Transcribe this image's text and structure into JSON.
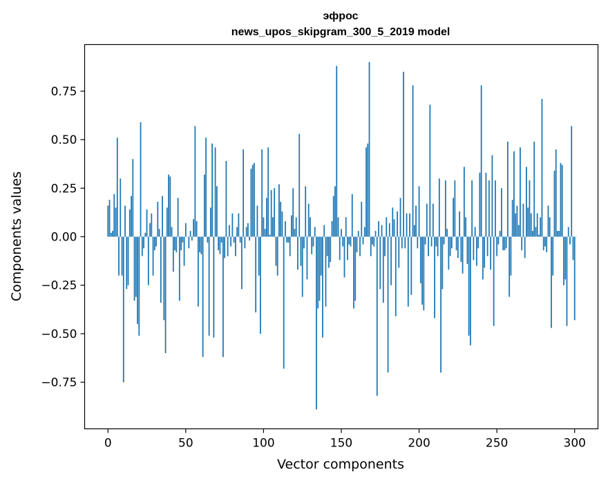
{
  "chart_data": {
    "type": "bar",
    "title": "эфрос",
    "subtitle": "news_upos_skipgram_300_5_2019 model",
    "xlabel": "Vector components",
    "ylabel": "Components values",
    "xlim": [
      -15,
      315
    ],
    "ylim": [
      -0.99,
      0.99
    ],
    "xticks": [
      0,
      50,
      100,
      150,
      200,
      250,
      300
    ],
    "yticks": [
      -0.75,
      -0.5,
      -0.25,
      0.0,
      0.25,
      0.5,
      0.75
    ],
    "ytick_labels": [
      "−0.75",
      "−0.50",
      "−0.25",
      "0.00",
      "0.25",
      "0.50",
      "0.75"
    ],
    "bar_color": "#1f77b4",
    "values": [
      0.16,
      0.19,
      0.02,
      0.03,
      0.22,
      0.15,
      0.51,
      -0.2,
      0.3,
      -0.2,
      -0.75,
      0.16,
      -0.27,
      -0.25,
      0.14,
      0.21,
      0.4,
      -0.33,
      -0.31,
      -0.45,
      -0.51,
      0.59,
      -0.1,
      -0.06,
      0.02,
      0.14,
      -0.25,
      0.07,
      0.12,
      -0.2,
      -0.07,
      -0.05,
      0.18,
      0.04,
      -0.34,
      0.21,
      -0.43,
      -0.6,
      0.15,
      0.32,
      0.31,
      0.05,
      -0.18,
      -0.07,
      -0.08,
      0.2,
      -0.33,
      -0.07,
      -0.03,
      -0.15,
      0.07,
      0.0,
      -0.06,
      0.03,
      -0.02,
      0.09,
      0.57,
      0.08,
      -0.36,
      -0.08,
      -0.09,
      -0.62,
      0.32,
      0.51,
      -0.03,
      -0.51,
      0.15,
      0.48,
      -0.52,
      0.46,
      0.26,
      -0.07,
      -0.09,
      -0.03,
      -0.62,
      -0.11,
      0.39,
      -0.1,
      0.06,
      -0.05,
      0.12,
      -0.03,
      -0.1,
      0.05,
      0.12,
      -0.03,
      -0.27,
      0.45,
      -0.06,
      0.05,
      0.07,
      -0.02,
      0.35,
      0.37,
      0.38,
      -0.39,
      0.16,
      -0.2,
      -0.5,
      0.45,
      0.1,
      0.04,
      0.2,
      0.46,
      0.01,
      0.24,
      0.1,
      0.25,
      -0.15,
      -0.2,
      0.27,
      0.18,
      0.13,
      -0.68,
      0.08,
      -0.03,
      -0.03,
      -0.1,
      0.11,
      0.25,
      0.04,
      0.1,
      -0.17,
      0.53,
      -0.15,
      -0.31,
      -0.06,
      0.26,
      -0.22,
      0.17,
      0.1,
      -0.09,
      -0.05,
      0.05,
      -0.89,
      -0.37,
      -0.33,
      -0.2,
      -0.52,
      0.06,
      -0.36,
      -0.1,
      -0.16,
      -0.13,
      0.08,
      0.21,
      0.26,
      0.88,
      0.1,
      -0.12,
      0.04,
      -0.05,
      -0.21,
      0.1,
      -0.12,
      -0.04,
      -0.05,
      0.22,
      -0.37,
      -0.33,
      -0.08,
      0.03,
      -0.1,
      0.18,
      -0.04,
      0.05,
      0.46,
      0.48,
      0.9,
      -0.1,
      -0.04,
      -0.05,
      0.03,
      -0.82,
      0.08,
      -0.27,
      0.06,
      -0.34,
      -0.1,
      0.1,
      -0.7,
      0.07,
      -0.25,
      0.15,
      0.09,
      -0.41,
      0.13,
      -0.16,
      0.2,
      -0.06,
      0.85,
      -0.06,
      0.12,
      -0.36,
      0.12,
      -0.3,
      0.78,
      0.06,
      0.16,
      -0.06,
      0.26,
      -0.24,
      -0.35,
      -0.38,
      -0.04,
      0.17,
      -0.1,
      0.68,
      -0.05,
      0.17,
      -0.42,
      -0.05,
      -0.1,
      0.3,
      -0.7,
      -0.27,
      -0.04,
      0.29,
      0.04,
      -0.17,
      -0.1,
      -0.06,
      0.2,
      0.29,
      -0.07,
      -0.11,
      0.13,
      -0.13,
      -0.19,
      0.36,
      0.1,
      -0.14,
      -0.51,
      -0.56,
      0.29,
      -0.12,
      0.05,
      -0.15,
      -0.06,
      0.33,
      0.78,
      -0.22,
      -0.16,
      0.33,
      -0.1,
      0.29,
      -0.17,
      0.42,
      -0.46,
      0.29,
      -0.1,
      -0.04,
      0.03,
      0.25,
      -0.07,
      -0.07,
      -0.06,
      0.49,
      -0.31,
      -0.2,
      0.19,
      0.44,
      0.12,
      0.16,
      0.06,
      0.46,
      -0.07,
      0.17,
      -0.11,
      0.36,
      0.15,
      0.29,
      0.12,
      0.03,
      0.49,
      0.05,
      0.12,
      0.01,
      0.1,
      0.71,
      -0.07,
      -0.05,
      -0.08,
      0.16,
      0.1,
      -0.47,
      -0.2,
      0.34,
      0.45,
      0.03,
      0.03,
      0.38,
      0.37,
      -0.25,
      -0.22,
      -0.46,
      0.05,
      -0.04,
      0.57,
      -0.12,
      -0.43,
      0.0
    ]
  }
}
